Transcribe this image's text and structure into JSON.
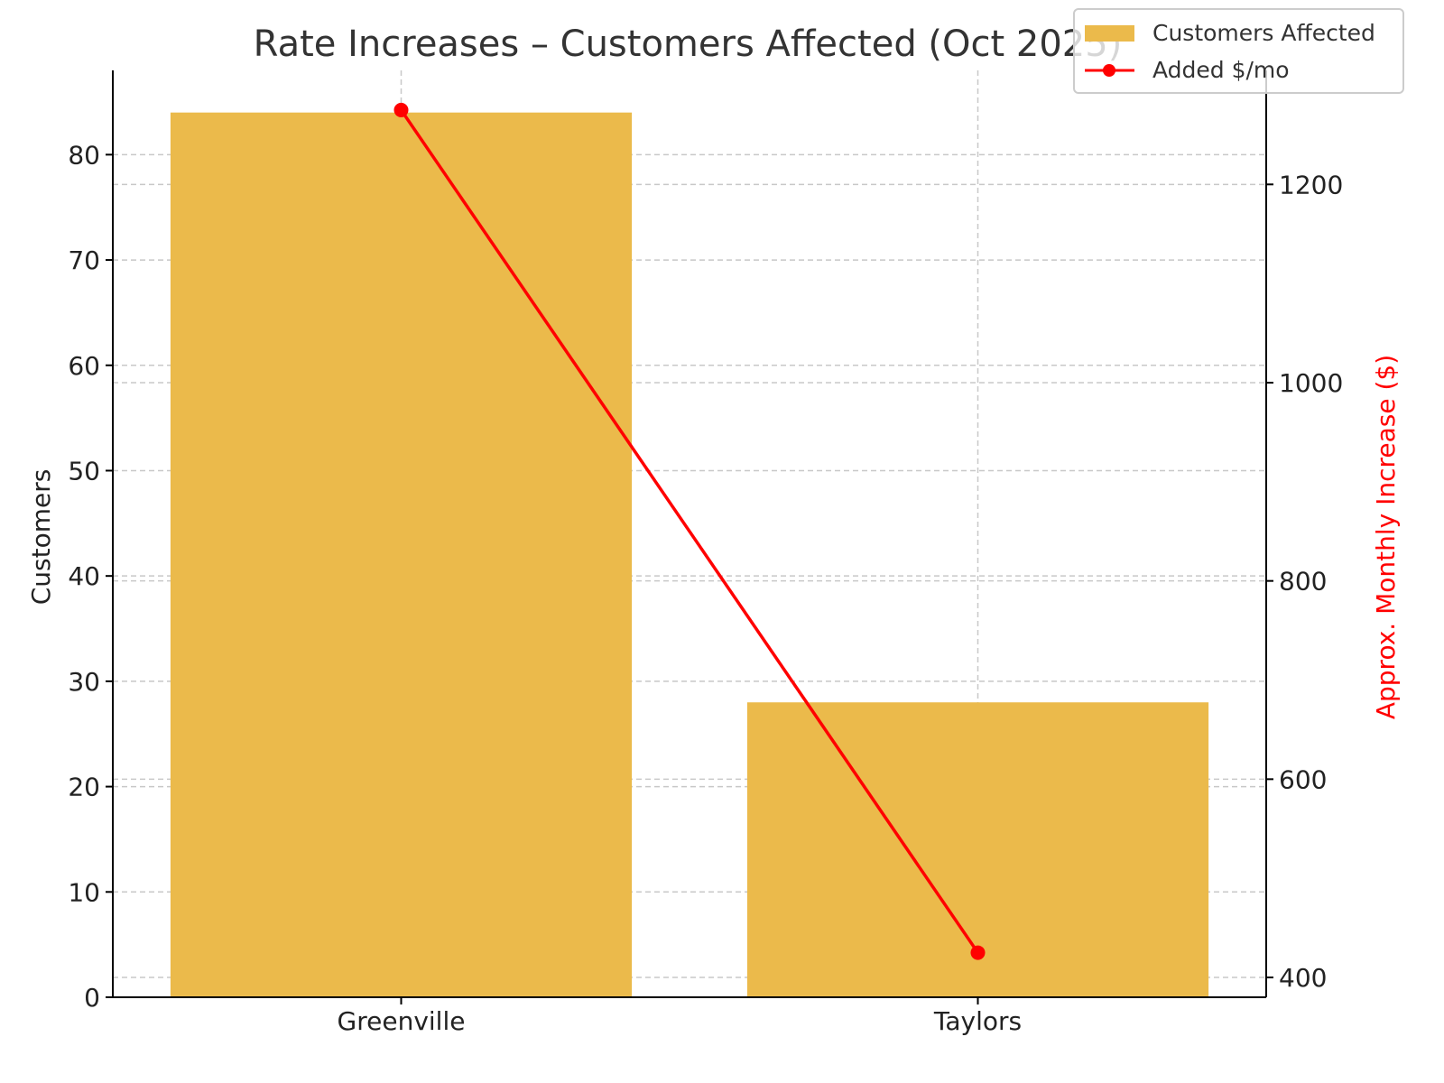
{
  "chart_data": {
    "type": "bar+line",
    "title": "Rate Increases – Customers Affected (Oct 2025)",
    "categories": [
      "Greenville",
      "Taylors"
    ],
    "series": [
      {
        "name": "Customers Affected",
        "type": "bar",
        "axis": "left",
        "color": "#ebba4b",
        "values": [
          84,
          28
        ]
      },
      {
        "name": "Added $/mo",
        "type": "line",
        "axis": "right",
        "color": "#ff0000",
        "marker": "circle",
        "values": [
          1275,
          425
        ]
      }
    ],
    "xlabel": "",
    "ylabel": "Customers",
    "ylabel_right": "Approx. Monthly Increase ($)",
    "ylim": [
      0,
      88
    ],
    "ylim_right": [
      380,
      1315
    ],
    "yticks": [
      0,
      10,
      20,
      30,
      40,
      50,
      60,
      70,
      80
    ],
    "yticks_right": [
      400,
      600,
      800,
      1000,
      1200
    ],
    "grid": true,
    "legend_position": "upper right"
  },
  "labels": {
    "title": "Rate Increases – Customers Affected (Oct 2025)",
    "ylabel": "Customers",
    "ylabel_right": "Approx. Monthly Increase ($)",
    "legend": [
      "Customers Affected",
      "Added $/mo"
    ]
  }
}
